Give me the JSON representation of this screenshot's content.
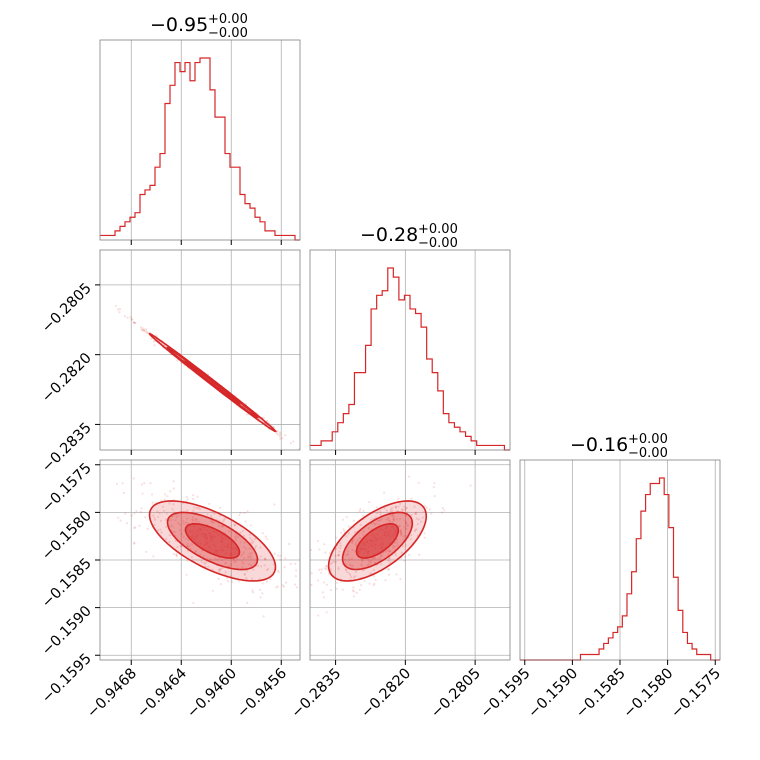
{
  "chart_data": {
    "type": "corner",
    "color": "#d62728",
    "parameters": [
      {
        "title_main": "−0.95",
        "title_sup": "+0.00",
        "title_sub": "−0.00",
        "range": [
          -0.94705,
          -0.94545
        ],
        "ticks": [
          -0.9468,
          -0.9464,
          -0.946,
          -0.9456
        ],
        "tick_labels": [
          "−0.9468",
          "−0.9464",
          "−0.9460",
          "−0.9456"
        ],
        "histogram": [
          1,
          1,
          1,
          2,
          3,
          4,
          5,
          6,
          10,
          11,
          12,
          16,
          19,
          30,
          34,
          39,
          37,
          39,
          35,
          39,
          40,
          40,
          33,
          27,
          27,
          19,
          16,
          16,
          10,
          8,
          7,
          5,
          4,
          2,
          2,
          1,
          1,
          1,
          1,
          0
        ]
      },
      {
        "title_main": "−0.28",
        "title_sup": "+0.00",
        "title_sub": "−0.00",
        "range": [
          -0.28405,
          -0.27975
        ],
        "ticks": [
          -0.2835,
          -0.282,
          -0.2805
        ],
        "tick_labels": [
          "−0.2835",
          "−0.2820",
          "−0.2805"
        ],
        "histogram": [
          1,
          1,
          2,
          2,
          4,
          6,
          8,
          10,
          17,
          17,
          23,
          31,
          34,
          35,
          40,
          38,
          33,
          34,
          31,
          30,
          27,
          20,
          17,
          13,
          8,
          6,
          5,
          4,
          3,
          2,
          1,
          1,
          1,
          1,
          1,
          0
        ]
      },
      {
        "title_main": "−0.16",
        "title_sup": "+0.00",
        "title_sub": "−0.00",
        "range": [
          -0.15955,
          -0.15745
        ],
        "ticks": [
          -0.1595,
          -0.159,
          -0.1585,
          -0.158,
          -0.1575
        ],
        "tick_labels": [
          "−0.1595",
          "−0.1590",
          "−0.1585",
          "−0.1580",
          "−0.1575"
        ],
        "histogram": [
          0,
          0,
          0,
          0,
          0,
          0,
          0,
          0,
          0,
          0,
          0,
          0,
          0,
          1,
          1,
          1,
          1,
          2,
          3,
          4,
          5,
          6,
          8,
          12,
          16,
          22,
          27,
          30,
          32,
          32,
          33,
          30,
          24,
          15,
          9,
          5,
          3,
          2,
          1,
          1,
          1,
          0,
          0
        ]
      }
    ],
    "correlations": [
      {
        "row": 1,
        "col": 0,
        "rho": -0.998,
        "label": "param1-vs-param0"
      },
      {
        "row": 2,
        "col": 0,
        "rho": -0.65,
        "label": "param2-vs-param0"
      },
      {
        "row": 2,
        "col": 1,
        "rho": 0.62,
        "label": "param2-vs-param1"
      }
    ],
    "means": [
      -0.94615,
      -0.2826,
      -0.1583
    ],
    "stds": [
      0.00024,
      0.0005,
      0.0002
    ],
    "grid": true,
    "contour_levels": 3
  }
}
